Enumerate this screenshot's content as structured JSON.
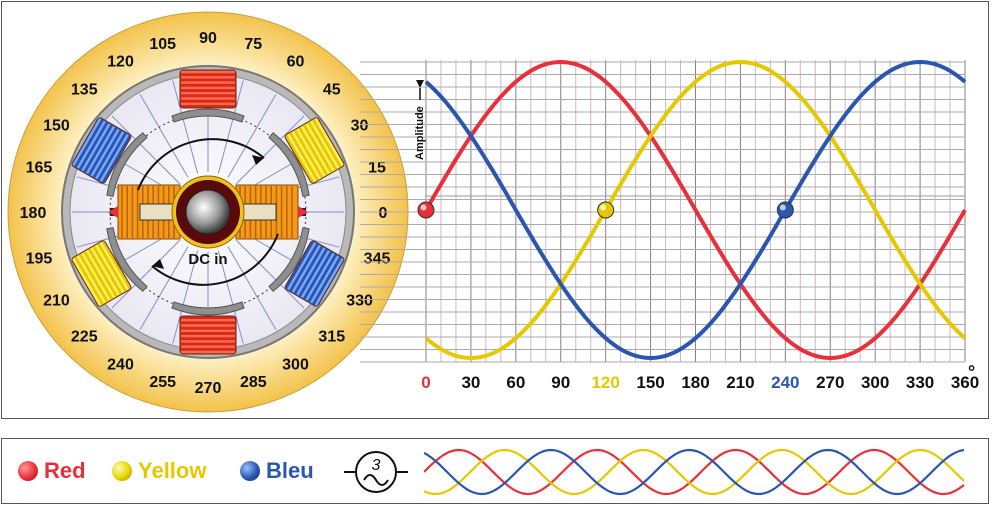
{
  "generator": {
    "angle_labels": [
      "0",
      "15",
      "30",
      "45",
      "60",
      "75",
      "90",
      "105",
      "120",
      "135",
      "150",
      "165",
      "180",
      "195",
      "210",
      "225",
      "240",
      "255",
      "270",
      "285",
      "300",
      "315",
      "330",
      "345"
    ],
    "shaft_label": "DC in"
  },
  "waveform": {
    "ylabel": "Amplitude",
    "degree_symbol": "°",
    "x_ticks": [
      "0",
      "30",
      "60",
      "90",
      "120",
      "150",
      "180",
      "210",
      "240",
      "270",
      "300",
      "330",
      "360"
    ],
    "phase_markers": [
      {
        "label": "0",
        "color": "#e8303a",
        "phase_deg": 0
      },
      {
        "label": "120",
        "color": "#e6c800",
        "phase_deg": 120
      },
      {
        "label": "240",
        "color": "#2a56b0",
        "phase_deg": 240
      }
    ]
  },
  "chart_data": {
    "type": "line",
    "xlabel": "",
    "ylabel": "Amplitude",
    "xlim": [
      0,
      360
    ],
    "ylim": [
      -1,
      1
    ],
    "x_ticks": [
      0,
      30,
      60,
      90,
      120,
      150,
      180,
      210,
      240,
      270,
      300,
      330,
      360
    ],
    "series": [
      {
        "name": "Red",
        "color": "#e8303a",
        "function": "sin(x)",
        "x": [
          0,
          30,
          60,
          90,
          120,
          150,
          180,
          210,
          240,
          270,
          300,
          330,
          360
        ],
        "values": [
          0,
          0.5,
          0.87,
          1,
          0.87,
          0.5,
          0,
          -0.5,
          -0.87,
          -1,
          -0.87,
          -0.5,
          0
        ]
      },
      {
        "name": "Yellow",
        "color": "#e6c800",
        "function": "sin(x-120)",
        "x": [
          0,
          30,
          60,
          90,
          120,
          150,
          180,
          210,
          240,
          270,
          300,
          330,
          360
        ],
        "values": [
          -0.87,
          -1,
          -0.87,
          -0.5,
          0,
          0.5,
          0.87,
          1,
          0.87,
          0.5,
          0,
          -0.5,
          -0.87
        ]
      },
      {
        "name": "Bleu",
        "color": "#2a56b0",
        "function": "sin(x-240)",
        "x": [
          0,
          30,
          60,
          90,
          120,
          150,
          180,
          210,
          240,
          270,
          300,
          330,
          360
        ],
        "values": [
          0.87,
          0.5,
          0,
          -0.5,
          -0.87,
          -1,
          -0.87,
          -0.5,
          0,
          0.5,
          0.87,
          1,
          0.87
        ]
      }
    ]
  },
  "legend": {
    "items": [
      {
        "label": "Red",
        "color": "#e8303a"
      },
      {
        "label": "Yellow",
        "color": "#e6c800"
      },
      {
        "label": "Bleu",
        "color": "#2a56b0"
      }
    ],
    "symbol_text": "3"
  }
}
